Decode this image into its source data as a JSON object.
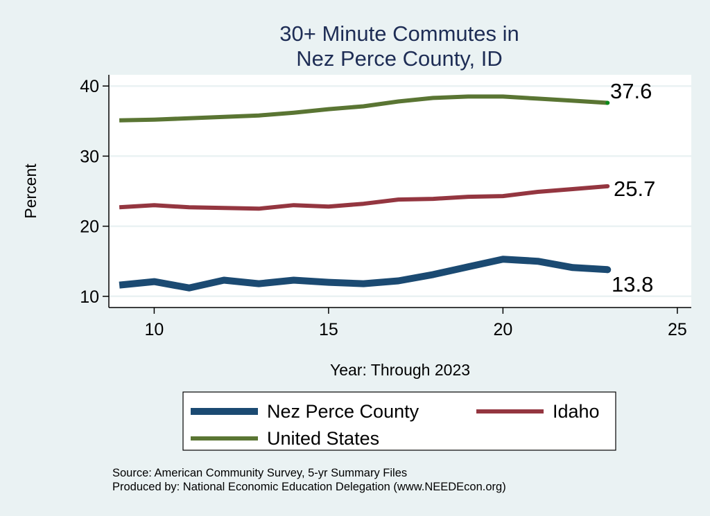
{
  "chart_data": {
    "type": "line",
    "title": [
      "30+ Minute Commutes in",
      "Nez Perce County, ID"
    ],
    "xlabel": "Year: Through 2023",
    "ylabel": "Percent",
    "xlim": [
      8.7,
      25.4
    ],
    "ylim": [
      8.4,
      41.6
    ],
    "xticks": [
      10,
      15,
      20,
      25
    ],
    "yticks": [
      10,
      20,
      30,
      40
    ],
    "xtick_labels": [
      "10",
      "15",
      "20",
      "25"
    ],
    "ytick_labels": [
      "10",
      "20",
      "30",
      "40"
    ],
    "grid": "horizontal",
    "x": [
      9,
      10,
      11,
      12,
      13,
      14,
      15,
      16,
      17,
      18,
      19,
      20,
      21,
      22,
      23
    ],
    "series": [
      {
        "name": "Nez Perce County",
        "color": "#1b4a72",
        "width": "thick",
        "values": [
          11.6,
          12.1,
          11.2,
          12.3,
          11.8,
          12.3,
          12.0,
          11.8,
          12.2,
          13.1,
          14.2,
          15.3,
          15.0,
          14.1,
          13.8
        ],
        "end_label": "13.8",
        "end_label_position": "below-right"
      },
      {
        "name": "Idaho",
        "color": "#943640",
        "width": "medium",
        "values": [
          22.7,
          23.0,
          22.7,
          22.6,
          22.5,
          23.0,
          22.8,
          23.2,
          23.8,
          23.9,
          24.2,
          24.3,
          24.9,
          25.3,
          25.7
        ],
        "end_label": "25.7",
        "end_label_position": "right"
      },
      {
        "name": "United States",
        "color": "#5a7533",
        "width": "medium",
        "values": [
          35.1,
          35.2,
          35.4,
          35.6,
          35.8,
          36.2,
          36.7,
          37.1,
          37.8,
          38.3,
          38.5,
          38.5,
          38.2,
          37.9,
          37.6
        ],
        "end_label": "37.6",
        "end_label_position": "above-right",
        "end_marker_color": "#0b8a1a"
      }
    ],
    "legend": {
      "placement": "bottom",
      "entries": [
        "Nez Perce County",
        "Idaho",
        "United States"
      ]
    },
    "notes": [
      "Source: American Community Survey, 5-yr Summary Files",
      "Produced by: National Economic Education Delegation (www.NEEDEcon.org)"
    ]
  },
  "colors": {
    "background": "#eaf2f3",
    "plot_background": "#ffffff",
    "gridline": "#eaf2f3",
    "title": "#1e2d55"
  }
}
